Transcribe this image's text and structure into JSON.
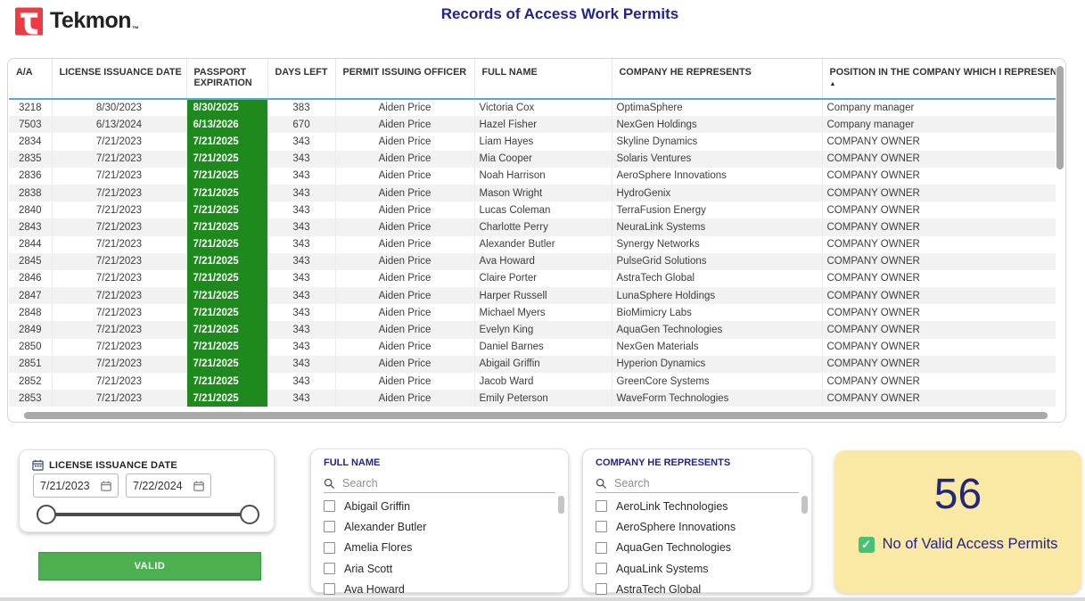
{
  "header": {
    "logo_text": "Tekmon",
    "logo_tm": "™",
    "title": "Records of Access Work Permits"
  },
  "table": {
    "columns": [
      "A/A",
      "LICENSE ISSUANCE DATE",
      "PASSPORT EXPIRATION",
      "DAYS LEFT",
      "PERMIT ISSUING OFFICER",
      "FULL NAME",
      "COMPANY HE REPRESENTS",
      "POSITION IN THE COMPANY WHICH I REPRESENT"
    ],
    "sorted_column": "POSITION IN THE COMPANY WHICH I REPRESENT",
    "sort_direction_icon": "▲",
    "rows": [
      [
        "3218",
        "8/30/2023",
        "8/30/2025",
        "383",
        "Aiden Price",
        "Victoria Cox",
        "OptimaSphere",
        "Company manager"
      ],
      [
        "7503",
        "6/13/2024",
        "6/13/2026",
        "670",
        "Aiden Price",
        "Hazel Fisher",
        "NexGen Holdings",
        "Company manager"
      ],
      [
        "2834",
        "7/21/2023",
        "7/21/2025",
        "343",
        "Aiden Price",
        "Liam Hayes",
        "Skyline Dynamics",
        "COMPANY OWNER"
      ],
      [
        "2835",
        "7/21/2023",
        "7/21/2025",
        "343",
        "Aiden Price",
        "Mia Cooper",
        "Solaris Ventures",
        "COMPANY OWNER"
      ],
      [
        "2836",
        "7/21/2023",
        "7/21/2025",
        "343",
        "Aiden Price",
        "Noah Harrison",
        "AeroSphere Innovations",
        "COMPANY OWNER"
      ],
      [
        "2838",
        "7/21/2023",
        "7/21/2025",
        "343",
        "Aiden Price",
        "Mason Wright",
        "HydroGenix",
        "COMPANY OWNER"
      ],
      [
        "2840",
        "7/21/2023",
        "7/21/2025",
        "343",
        "Aiden Price",
        "Lucas Coleman",
        "TerraFusion Energy",
        "COMPANY OWNER"
      ],
      [
        "2843",
        "7/21/2023",
        "7/21/2025",
        "343",
        "Aiden Price",
        "Charlotte Perry",
        "NeuraLink Systems",
        "COMPANY OWNER"
      ],
      [
        "2844",
        "7/21/2023",
        "7/21/2025",
        "343",
        "Aiden Price",
        "Alexander Butler",
        "Synergy Networks",
        "COMPANY OWNER"
      ],
      [
        "2845",
        "7/21/2023",
        "7/21/2025",
        "343",
        "Aiden Price",
        "Ava Howard",
        "PulseGrid Solutions",
        "COMPANY OWNER"
      ],
      [
        "2846",
        "7/21/2023",
        "7/21/2025",
        "343",
        "Aiden Price",
        "Claire Porter",
        "AstraTech Global",
        "COMPANY OWNER"
      ],
      [
        "2847",
        "7/21/2023",
        "7/21/2025",
        "343",
        "Aiden Price",
        "Harper Russell",
        "LunaSphere Holdings",
        "COMPANY OWNER"
      ],
      [
        "2848",
        "7/21/2023",
        "7/21/2025",
        "343",
        "Aiden Price",
        "Michael Myers",
        "BioMimicry Labs",
        "COMPANY OWNER"
      ],
      [
        "2849",
        "7/21/2023",
        "7/21/2025",
        "343",
        "Aiden Price",
        "Evelyn King",
        "AquaGen Technologies",
        "COMPANY OWNER"
      ],
      [
        "2850",
        "7/21/2023",
        "7/21/2025",
        "343",
        "Aiden Price",
        "Daniel Barnes",
        "NexGen Materials",
        "COMPANY OWNER"
      ],
      [
        "2851",
        "7/21/2023",
        "7/21/2025",
        "343",
        "Aiden Price",
        "Abigail Griffin",
        "Hyperion Dynamics",
        "COMPANY OWNER"
      ],
      [
        "2852",
        "7/21/2023",
        "7/21/2025",
        "343",
        "Aiden Price",
        "Jacob Ward",
        "GreenCore Systems",
        "COMPANY OWNER"
      ],
      [
        "2853",
        "7/21/2023",
        "7/21/2025",
        "343",
        "Aiden Price",
        "Emily Peterson",
        "WaveForm Technologies",
        "COMPANY OWNER"
      ]
    ]
  },
  "filters": {
    "date_slicer": {
      "title": "LICENSE ISSUANCE DATE",
      "start_date": "7/21/2023",
      "end_date": "7/22/2024"
    },
    "valid_button_label": "VALID",
    "full_name": {
      "title": "FULL NAME",
      "search_placeholder": "Search",
      "items": [
        "Abigail Griffin",
        "Alexander Butler",
        "Amelia Flores",
        "Aria Scott",
        "Ava Howard"
      ]
    },
    "company": {
      "title": "COMPANY HE REPRESENTS",
      "search_placeholder": "Search",
      "items": [
        "AeroLink Technologies",
        "AeroSphere Innovations",
        "AquaGen Technologies",
        "AquaLink Systems",
        "AstraTech Global"
      ]
    }
  },
  "kpi_card": {
    "value": "56",
    "label": "No of Valid Access Permits",
    "check_icon": "✓"
  },
  "colors": {
    "green_cell": "#1E8A1E",
    "title_navy": "#23238B",
    "kpi_yellow": "#F9E9A4",
    "valid_green": "#4CAF50",
    "logo_red": "#EE3A43",
    "header_divider_blue": "#5AA7E0"
  }
}
